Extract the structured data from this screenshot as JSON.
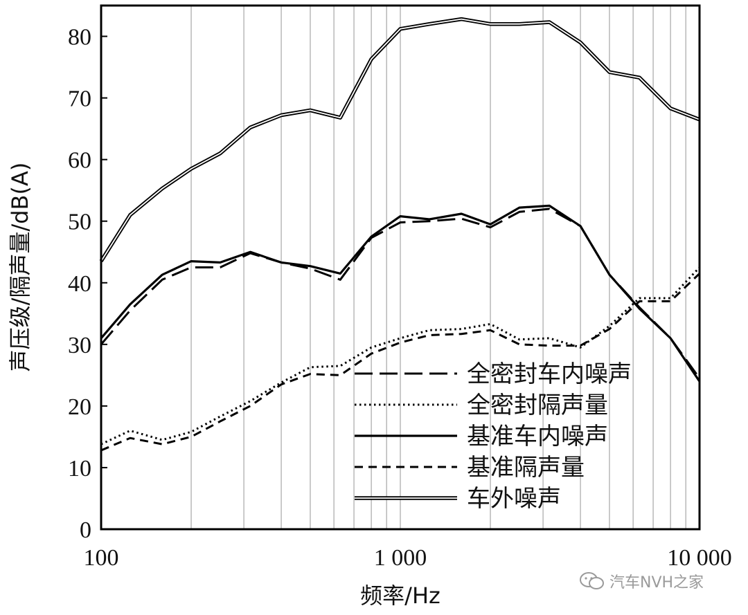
{
  "chart_data": {
    "type": "line",
    "xlabel": "频率/Hz",
    "ylabel": "声压级/隔声量/dB(A)",
    "xscale": "log",
    "xlim": [
      100,
      10000
    ],
    "ylim": [
      0,
      85
    ],
    "xticks": [
      {
        "value": 100,
        "label": "100"
      },
      {
        "value": 1000,
        "label": "1 000"
      },
      {
        "value": 10000,
        "label": "10 000"
      }
    ],
    "yticks": [
      0,
      10,
      20,
      30,
      40,
      50,
      60,
      70,
      80
    ],
    "x": [
      100,
      125,
      160,
      200,
      250,
      315,
      400,
      500,
      630,
      800,
      1000,
      1250,
      1600,
      2000,
      2500,
      3150,
      4000,
      5000,
      6300,
      8000,
      10000
    ],
    "legend_position": "lower-right",
    "series": [
      {
        "name": "全密封车内噪声",
        "style": "long-dash",
        "values": [
          30,
          35.5,
          40.5,
          42.5,
          42.5,
          44.8,
          43.3,
          42.3,
          40.5,
          47.3,
          49.8,
          50,
          50.4,
          49,
          51.5,
          52,
          49.2,
          41.3,
          36,
          31,
          24.5
        ]
      },
      {
        "name": "全密封隔声量",
        "style": "dotted",
        "values": [
          13.8,
          16,
          14.5,
          15.8,
          18.3,
          20.8,
          23.8,
          26.3,
          26.5,
          29.5,
          31,
          32.3,
          32.5,
          33.3,
          30.8,
          31,
          29.5,
          33,
          37.5,
          37.5,
          42.5
        ]
      },
      {
        "name": "基准车内噪声",
        "style": "solid",
        "values": [
          31,
          36.5,
          41.3,
          43.5,
          43.3,
          45,
          43.3,
          42.7,
          41.5,
          47.5,
          50.8,
          50.3,
          51.2,
          49.5,
          52.2,
          52.5,
          49.2,
          41.3,
          35.8,
          31,
          24
        ]
      },
      {
        "name": "基准隔声量",
        "style": "short-dash",
        "values": [
          12.8,
          14.8,
          13.8,
          15,
          17.5,
          20,
          23.5,
          25.2,
          25,
          28.5,
          30.3,
          31.5,
          31.7,
          32.3,
          30,
          29.8,
          29.8,
          32.5,
          37,
          37,
          41.5
        ]
      },
      {
        "name": "车外噪声",
        "style": "double",
        "values": [
          43.5,
          51,
          55.3,
          58.5,
          61,
          65.2,
          67.2,
          68,
          66.8,
          76.3,
          81.2,
          82,
          82.8,
          82,
          82,
          82.3,
          79,
          74.2,
          73.3,
          68.3,
          66.5
        ]
      }
    ]
  },
  "watermark": {
    "text": "汽车NVH之家",
    "icon": "wechat-icon"
  }
}
